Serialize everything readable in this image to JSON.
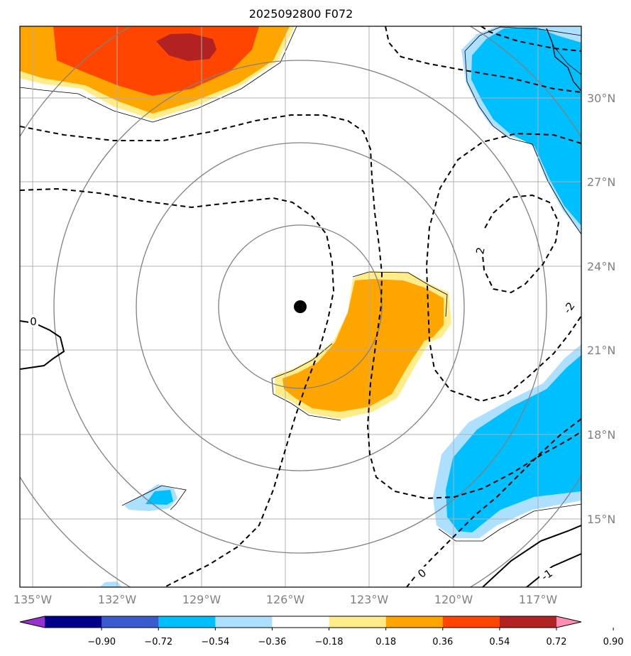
{
  "title": "2025092800 F072",
  "axes": {
    "lon_labels": [
      "135°W",
      "132°W",
      "129°W",
      "126°W",
      "123°W",
      "120°W",
      "117°W"
    ],
    "lat_labels": [
      "30°N",
      "27°N",
      "24°N",
      "21°N",
      "18°N",
      "15°N"
    ]
  },
  "center_marker": "storm-center",
  "contour_labels": [
    "0",
    "2",
    "-2",
    "0",
    "-1"
  ],
  "colorbar": {
    "ticks": [
      "−0.90",
      "−0.72",
      "−0.54",
      "−0.36",
      "−0.18",
      "0.18",
      "0.36",
      "0.54",
      "0.72",
      "0.90"
    ],
    "colors": [
      "#9932CC",
      "#00008B",
      "#3A5BCF",
      "#00BFFF",
      "#ADDFFF",
      "#FFFFFF",
      "#FFEC8B",
      "#FFA500",
      "#FF4500",
      "#B22222",
      "#FF8CB4"
    ]
  }
}
